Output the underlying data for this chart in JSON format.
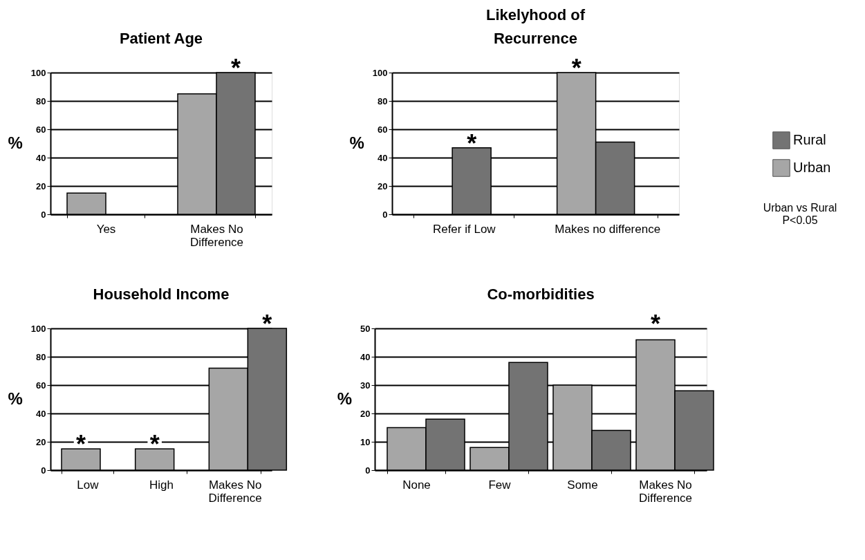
{
  "chart_data": [
    {
      "type": "bar",
      "title": "Patient Age",
      "ylabel": "%",
      "categories": [
        "Yes",
        "Makes No\nDifference"
      ],
      "series": [
        {
          "color": "#a6a6a6",
          "values": [
            15,
            85
          ]
        },
        {
          "color": "#737373",
          "values": [
            null,
            100
          ],
          "value_labels": [
            null,
            "*"
          ]
        }
      ],
      "ylim": [
        0,
        100
      ],
      "yticks": [
        0,
        20,
        40,
        60,
        80,
        100
      ],
      "grid": "y"
    },
    {
      "type": "bar",
      "title": "Likelyhood of\nRecurrence",
      "ylabel": "%",
      "categories": [
        "Refer if Low",
        "Makes no difference"
      ],
      "series": [
        {
          "name": "Urban",
          "color": "#a6a6a6",
          "values": [
            null,
            100
          ],
          "value_labels": [
            null,
            "*"
          ]
        },
        {
          "name": "Rural",
          "color": "#737373",
          "values": [
            47,
            51
          ],
          "value_labels": [
            "*",
            null
          ]
        }
      ],
      "ylim": [
        0,
        100
      ],
      "yticks": [
        0,
        20,
        40,
        60,
        80,
        100
      ],
      "grid": "y",
      "legend": "right",
      "annotations": [
        "Urban vs Rural\nP<0.05"
      ]
    },
    {
      "type": "bar",
      "title": "Household Income",
      "ylabel": "%",
      "categories": [
        "Low",
        "High",
        "Makes No\nDifference"
      ],
      "series": [
        {
          "color": "#a6a6a6",
          "values": [
            15,
            15,
            72
          ],
          "value_labels": [
            "*",
            "*",
            null
          ]
        },
        {
          "color": "#737373",
          "values": [
            null,
            null,
            100
          ],
          "value_labels": [
            null,
            null,
            "*"
          ]
        }
      ],
      "ylim": [
        0,
        100
      ],
      "yticks": [
        0,
        20,
        40,
        60,
        80,
        100
      ],
      "grid": "y"
    },
    {
      "type": "bar",
      "title": "Co-morbidities",
      "ylabel": "%",
      "categories": [
        "None",
        "Few",
        "Some",
        "Makes No\nDifference"
      ],
      "series": [
        {
          "color": "#a6a6a6",
          "values": [
            15,
            8,
            30,
            46
          ],
          "value_labels": [
            null,
            null,
            null,
            "*"
          ]
        },
        {
          "color": "#737373",
          "values": [
            18,
            38,
            14,
            28
          ]
        }
      ],
      "ylim": [
        0,
        50
      ],
      "yticks": [
        0,
        10,
        20,
        30,
        40,
        50
      ],
      "grid": "y"
    }
  ]
}
